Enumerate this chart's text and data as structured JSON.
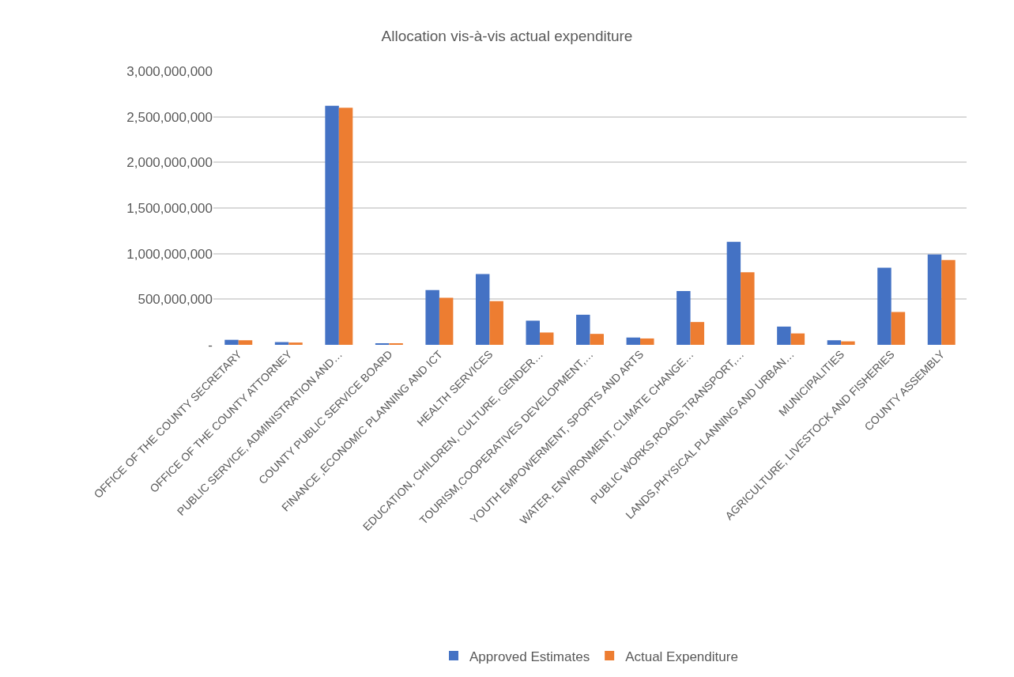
{
  "chart_data": {
    "type": "bar",
    "title": "Allocation vis-à-vis actual expenditure",
    "categories": [
      "OFFICE OF THE COUNTY SECRETARY",
      "OFFICE OF THE COUNTY ATTORNEY",
      "PUBLIC SERVICE, ADMINISTRATION AND…",
      "COUNTY PUBLIC SERVICE BOARD",
      "FINANCE ,ECONOMIC PLANNING AND ICT",
      "HEALTH SERVICES",
      "EDUCATION, CHILDREN, CULTURE, GENDER…",
      "TOURISM,COOPERATIVES DEVELOPMENT,…",
      "YOUTH EMPOWERMENT, SPORTS AND ARTS",
      "WATER, ENVIRONMENT, CLIMATE CHANGE…",
      "PUBLIC WORKS,ROADS,TRANSPORT,…",
      "LANDS,PHYSICAL PLANNING AND URBAN…",
      "MUNICIPALITIES",
      "AGRICULTURE, LIVESTOCK AND FISHERIES",
      "COUNTY ASSEMBLY"
    ],
    "series": [
      {
        "name": "Approved Estimates",
        "color": "#4472c4",
        "values": [
          55000000,
          30000000,
          2620000000,
          15000000,
          600000000,
          775000000,
          265000000,
          330000000,
          80000000,
          590000000,
          1130000000,
          200000000,
          50000000,
          845000000,
          990000000
        ]
      },
      {
        "name": "Actual Expenditure",
        "color": "#ed7d31",
        "values": [
          50000000,
          25000000,
          2600000000,
          15000000,
          515000000,
          480000000,
          135000000,
          120000000,
          70000000,
          250000000,
          795000000,
          125000000,
          38000000,
          360000000,
          930000000
        ]
      }
    ],
    "ylim": [
      0,
      3000000000
    ],
    "yticks": [
      {
        "value": 0,
        "label": "-"
      },
      {
        "value": 500000000,
        "label": "500,000,000"
      },
      {
        "value": 1000000000,
        "label": "1,000,000,000"
      },
      {
        "value": 1500000000,
        "label": "1,500,000,000"
      },
      {
        "value": 2000000000,
        "label": "2,000,000,000"
      },
      {
        "value": 2500000000,
        "label": "2,500,000,000"
      },
      {
        "value": 3000000000,
        "label": "3,000,000,000"
      }
    ],
    "grid": "y",
    "legend": "bottom"
  }
}
